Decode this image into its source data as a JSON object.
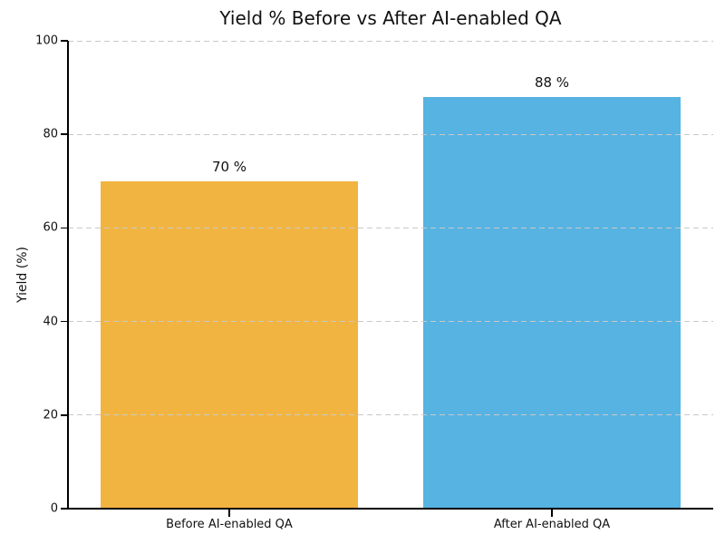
{
  "chart_data": {
    "type": "bar",
    "title": "Yield % Before vs After AI-enabled QA",
    "categories": [
      "Before AI-enabled QA",
      "After AI-enabled QA"
    ],
    "values": [
      70,
      88
    ],
    "bar_value_labels": [
      "70 %",
      "88 %"
    ],
    "bar_colors": [
      "#F2B441",
      "#57B3E2"
    ],
    "xlabel": "",
    "ylabel": "Yield (%)",
    "ylim": [
      0,
      100
    ],
    "yticks": [
      0,
      20,
      40,
      60,
      80,
      100
    ],
    "grid": "horizontal-dashed",
    "grid_color": "#c9c9c9",
    "grid_over_bars": true,
    "bar_slot_fraction": 0.8,
    "legend_position": "none"
  }
}
